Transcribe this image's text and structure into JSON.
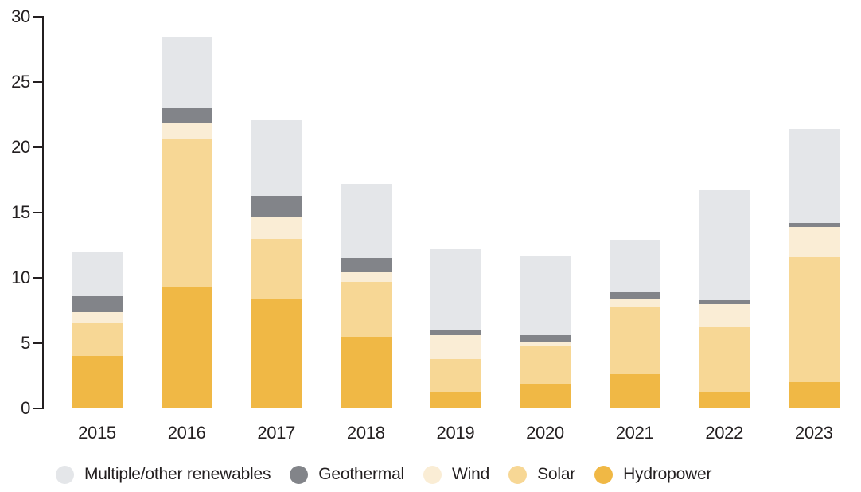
{
  "chart_data": {
    "type": "bar",
    "stacked": true,
    "title": "",
    "xlabel": "",
    "ylabel": "",
    "categories": [
      "2015",
      "2016",
      "2017",
      "2018",
      "2019",
      "2020",
      "2021",
      "2022",
      "2023"
    ],
    "series": [
      {
        "name": "Hydropower",
        "color": "#F0B845",
        "values": [
          4.0,
          9.3,
          8.4,
          5.5,
          1.3,
          1.9,
          2.6,
          1.2,
          2.0
        ]
      },
      {
        "name": "Solar",
        "color": "#F7D795",
        "values": [
          2.5,
          11.3,
          4.6,
          4.2,
          2.5,
          2.9,
          5.2,
          5.0,
          9.6
        ]
      },
      {
        "name": "Wind",
        "color": "#FAEDD5",
        "values": [
          0.9,
          1.3,
          1.7,
          0.7,
          1.8,
          0.3,
          0.6,
          1.8,
          2.3
        ]
      },
      {
        "name": "Geothermal",
        "color": "#828489",
        "values": [
          1.2,
          1.1,
          1.6,
          1.1,
          0.4,
          0.5,
          0.5,
          0.3,
          0.3
        ]
      },
      {
        "name": "Multiple/other renewables",
        "color": "#E4E6E9",
        "values": [
          3.4,
          5.5,
          5.8,
          5.7,
          6.2,
          6.1,
          4.0,
          8.4,
          7.2
        ]
      }
    ],
    "totals": [
      12.0,
      28.5,
      22.1,
      17.2,
      12.2,
      11.7,
      12.9,
      16.7,
      21.4
    ],
    "ylim": [
      0,
      30
    ],
    "yticks": [
      0,
      5,
      10,
      15,
      20,
      25,
      30
    ],
    "grid": false,
    "legend_position": "bottom",
    "stack_order_bottom_to_top": [
      "Hydropower",
      "Solar",
      "Wind",
      "Geothermal",
      "Multiple/other renewables"
    ]
  },
  "legend": {
    "items": [
      {
        "label": "Multiple/other renewables",
        "color": "#E4E6E9"
      },
      {
        "label": "Geothermal",
        "color": "#828489"
      },
      {
        "label": "Wind",
        "color": "#FAEDD5"
      },
      {
        "label": "Solar",
        "color": "#F7D795"
      },
      {
        "label": "Hydropower",
        "color": "#F0B845"
      }
    ]
  },
  "axis": {
    "text_color": "#231F20",
    "line_color": "#231F20"
  }
}
